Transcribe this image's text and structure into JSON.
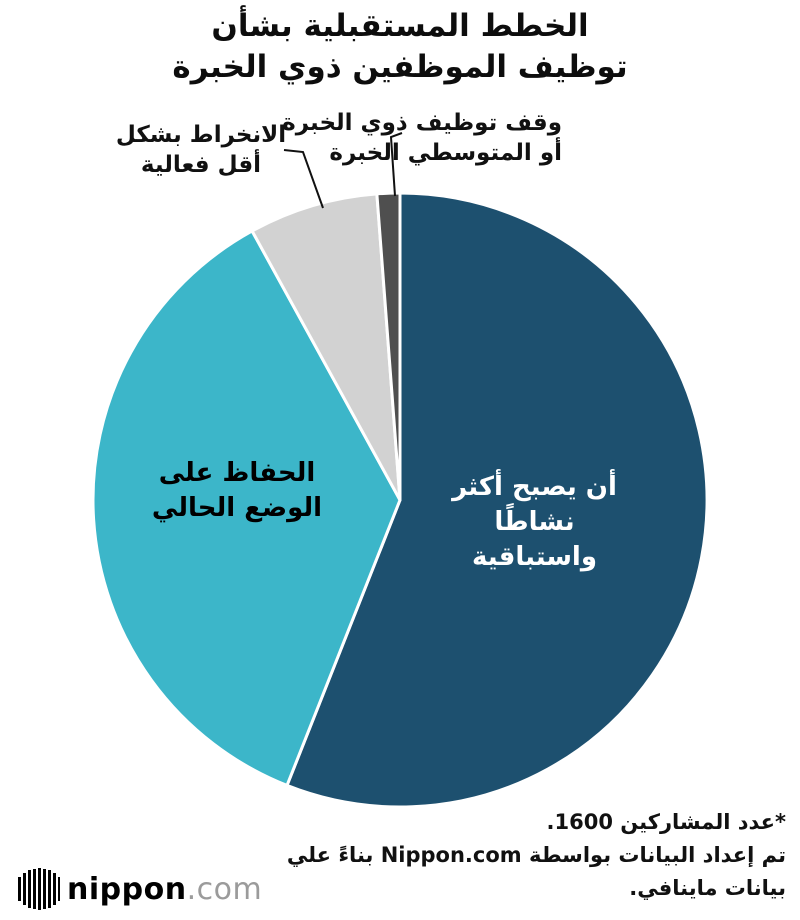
{
  "title": {
    "line1": "الخطط المستقبلية بشأن",
    "line2": "توظيف الموظفين ذوي الخبرة"
  },
  "chart_data": {
    "type": "pie",
    "title": "الخطط المستقبلية بشأن توظيف الموظفين ذوي الخبرة",
    "unit": "percent",
    "direction": "clockwise",
    "start_angle": "12-oclock",
    "legend": "labels-inside-and-callouts",
    "slices": [
      {
        "label": "أن يصبح أكثر نشاطًا واستباقية",
        "value": 56.0,
        "color": "#1d506f"
      },
      {
        "label": "الحفاظ على الوضع الحالي",
        "value": 36.0,
        "color": "#3cb6c9"
      },
      {
        "label": "الانخراط بشكل أقل فعالية",
        "value": 6.8,
        "color": "#d2d2d2"
      },
      {
        "label": "وقف توظيف ذوي الخبرة أو المتوسطي الخبرة",
        "value": 1.2,
        "color": "#4f4f4f"
      }
    ]
  },
  "slice_labels": {
    "proactive": {
      "line1": "أن يصبح أكثر",
      "line2": "نشاطًا واستباقية"
    },
    "maintain": {
      "line1": "الحفاظ على",
      "line2": "الوضع الحالي"
    },
    "less_active": {
      "line1": "الانخراط بشكل",
      "line2": "أقل فعالية"
    },
    "stop_hiring": {
      "line1": "وقف توظيف ذوي الخبرة",
      "line2": "أو المتوسطي الخبرة"
    }
  },
  "footer": {
    "line1": "*عدد المشاركين  1600.",
    "line2": "تم إعداد البيانات بواسطة Nippon.com بناءً علي",
    "line3": "بيانات ماينافي."
  },
  "logo": {
    "name": "nippon",
    "tld": ".com"
  },
  "colors": {
    "blue": "#1d506f",
    "teal": "#3cb6c9",
    "gray": "#d2d2d2",
    "dark": "#4f4f4f",
    "text": "#111111"
  }
}
